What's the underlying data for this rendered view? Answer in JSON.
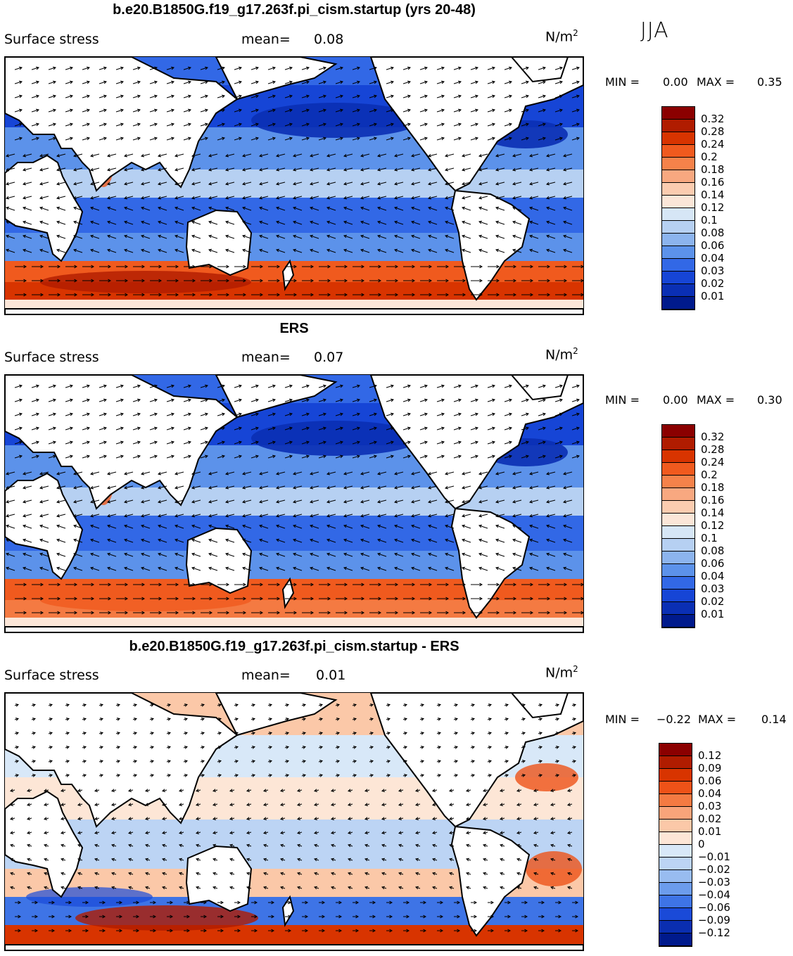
{
  "season": "JJA",
  "panels": [
    {
      "title": "b.e20.B1850G.f19_g17.263f.pi_cism.startup (yrs 20-48)",
      "variable": "Surface stress",
      "mean_label": "mean=",
      "mean_value": "0.08",
      "units": "N/m",
      "units_exp": "2",
      "min_label": "MIN =",
      "min_value": "0.00",
      "max_label": "MAX =",
      "max_value": "0.35",
      "colorbar": {
        "labels": [
          "0.32",
          "0.28",
          "0.24",
          "0.2",
          "0.18",
          "0.16",
          "0.14",
          "0.12",
          "0.1",
          "0.08",
          "0.06",
          "0.04",
          "0.03",
          "0.02",
          "0.01"
        ],
        "colors": [
          "#8b0000",
          "#b01c00",
          "#d83400",
          "#f05a1e",
          "#f5824a",
          "#f8a880",
          "#fbccb0",
          "#fbe6d8",
          "#d6e6f6",
          "#b6d0f2",
          "#8cb4ee",
          "#5c92ea",
          "#3268e6",
          "#1645d6",
          "#0a2fb4",
          "#001a8c"
        ]
      }
    },
    {
      "title": "ERS",
      "variable": "Surface stress",
      "mean_label": "mean=",
      "mean_value": "0.07",
      "units": "N/m",
      "units_exp": "2",
      "min_label": "MIN =",
      "min_value": "0.00",
      "max_label": "MAX =",
      "max_value": "0.30",
      "colorbar": {
        "labels": [
          "0.32",
          "0.28",
          "0.24",
          "0.2",
          "0.18",
          "0.16",
          "0.14",
          "0.12",
          "0.1",
          "0.08",
          "0.06",
          "0.04",
          "0.03",
          "0.02",
          "0.01"
        ],
        "colors": [
          "#8b0000",
          "#b01c00",
          "#d83400",
          "#f05a1e",
          "#f5824a",
          "#f8a880",
          "#fbccb0",
          "#fbe6d8",
          "#d6e6f6",
          "#b6d0f2",
          "#8cb4ee",
          "#5c92ea",
          "#3268e6",
          "#1645d6",
          "#0a2fb4",
          "#001a8c"
        ]
      }
    },
    {
      "title": "b.e20.B1850G.f19_g17.263f.pi_cism.startup - ERS",
      "variable": "Surface stress",
      "mean_label": "mean=",
      "mean_value": "0.01",
      "units": "N/m",
      "units_exp": "2",
      "min_label": "MIN =",
      "min_value": "−0.22",
      "max_label": "MAX =",
      "max_value": "0.14",
      "colorbar": {
        "labels": [
          "0.12",
          "0.09",
          "0.06",
          "0.04",
          "0.03",
          "0.02",
          "0.01",
          "0",
          "−0.01",
          "−0.02",
          "−0.03",
          "−0.04",
          "−0.06",
          "−0.09",
          "−0.12"
        ],
        "colors": [
          "#8b0000",
          "#b01c00",
          "#d83400",
          "#ee5218",
          "#f47a42",
          "#f8a47a",
          "#fbc8a8",
          "#fde6d6",
          "#d8e8f8",
          "#bcd4f4",
          "#98bcf0",
          "#6c9cec",
          "#3e74e6",
          "#1a4ad8",
          "#0a2eb0",
          "#001a8c"
        ]
      }
    }
  ]
}
